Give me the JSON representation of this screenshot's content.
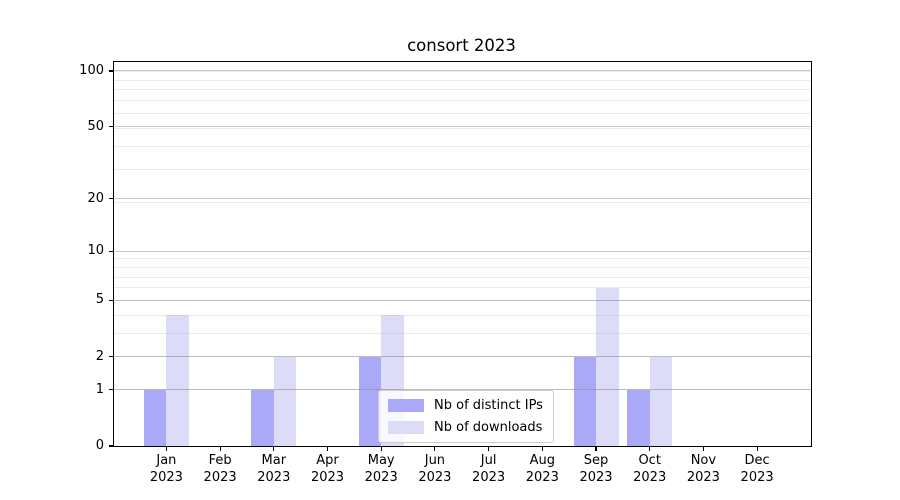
{
  "figure": {
    "title": "consort 2023",
    "background_color": "#ffffff"
  },
  "chart_data": {
    "type": "bar",
    "title": "consort 2023",
    "xlabel": "",
    "ylabel": "",
    "categories": [
      "Jan 2023",
      "Feb 2023",
      "Mar 2023",
      "Apr 2023",
      "May 2023",
      "Jun 2023",
      "Jul 2023",
      "Aug 2023",
      "Sep 2023",
      "Oct 2023",
      "Nov 2023",
      "Dec 2023"
    ],
    "x_tick_month_line": [
      "Jan",
      "Feb",
      "Mar",
      "Apr",
      "May",
      "Jun",
      "Jul",
      "Aug",
      "Sep",
      "Oct",
      "Nov",
      "Dec"
    ],
    "x_tick_year_line": "2023",
    "series": [
      {
        "name": "Nb of distinct IPs",
        "color": "#a9a9f7",
        "values": [
          1,
          0,
          1,
          0,
          2,
          0,
          0,
          0,
          2,
          1,
          0,
          0
        ]
      },
      {
        "name": "Nb of downloads",
        "color": "#dcdcf8",
        "values": [
          4,
          0,
          2,
          0,
          4,
          0,
          0,
          0,
          6,
          2,
          0,
          0
        ]
      }
    ],
    "y_axis": {
      "scale": "log10(1+y)",
      "major_ticks": [
        0,
        1,
        2,
        5,
        10,
        20,
        50,
        100
      ],
      "minor_gridlines": [
        1,
        2,
        3,
        4,
        5,
        6,
        7,
        8,
        9,
        19,
        29,
        39,
        49,
        59,
        69,
        79,
        89,
        99
      ],
      "ylim": [
        0,
        112
      ]
    },
    "grid": "both major and minor, horizontal only, drawn above bars",
    "legend_position": "lower center inside axes"
  },
  "colors": {
    "bar_distinct_ips": "#a9a9f7",
    "bar_downloads": "#dcdcf8",
    "spine": "#000000",
    "text": "#000000",
    "legend_border": "#cccccc",
    "grid_major": "#c6c6c6",
    "grid_minor": "#ececec"
  }
}
